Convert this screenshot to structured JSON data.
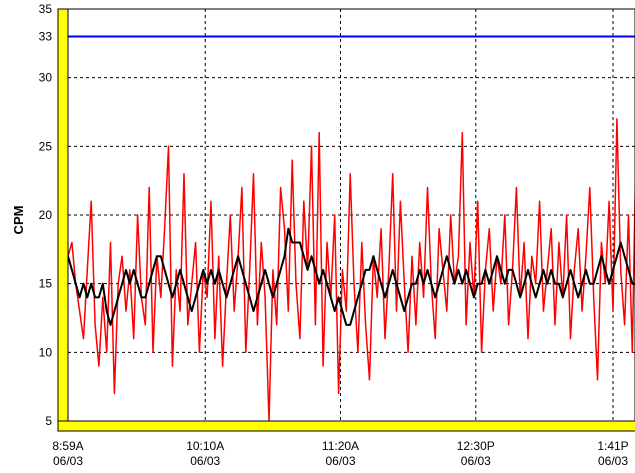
{
  "chart_data": {
    "type": "line",
    "title": "",
    "xlabel": "",
    "ylabel": "CPM",
    "ylim": [
      5,
      35
    ],
    "yticks": [
      "35",
      "33",
      "30",
      "25",
      "20",
      "15",
      "10",
      "5"
    ],
    "ytick_values": [
      35,
      33,
      30,
      25,
      20,
      15,
      10,
      5
    ],
    "xticks": [
      {
        "time": "08:59",
        "label": "8:59A",
        "date": "06/03"
      },
      {
        "time": "10:10",
        "label": "10:10A",
        "date": "06/03"
      },
      {
        "time": "11:20",
        "label": "11:20A",
        "date": "06/03"
      },
      {
        "time": "12:30",
        "label": "12:30P",
        "date": "06/03"
      },
      {
        "time": "13:41",
        "label": "1:41P",
        "date": "06/03"
      }
    ],
    "xlim": [
      "08:59",
      "13:52"
    ],
    "grid": true,
    "threshold": {
      "value": 33,
      "color": "#0000ff"
    },
    "x": [
      "08:59",
      "09:01",
      "09:03",
      "09:05",
      "09:07",
      "09:09",
      "09:11",
      "09:13",
      "09:15",
      "09:17",
      "09:19",
      "09:21",
      "09:23",
      "09:25",
      "09:27",
      "09:29",
      "09:31",
      "09:33",
      "09:35",
      "09:37",
      "09:39",
      "09:41",
      "09:43",
      "09:45",
      "09:47",
      "09:49",
      "09:51",
      "09:53",
      "09:55",
      "09:57",
      "09:59",
      "10:01",
      "10:03",
      "10:05",
      "10:07",
      "10:09",
      "10:11",
      "10:13",
      "10:15",
      "10:17",
      "10:19",
      "10:21",
      "10:23",
      "10:25",
      "10:27",
      "10:29",
      "10:31",
      "10:33",
      "10:35",
      "10:37",
      "10:39",
      "10:41",
      "10:43",
      "10:45",
      "10:47",
      "10:49",
      "10:51",
      "10:53",
      "10:55",
      "10:57",
      "10:59",
      "11:01",
      "11:03",
      "11:05",
      "11:07",
      "11:09",
      "11:11",
      "11:13",
      "11:15",
      "11:17",
      "11:19",
      "11:21",
      "11:23",
      "11:25",
      "11:27",
      "11:29",
      "11:31",
      "11:33",
      "11:35",
      "11:37",
      "11:39",
      "11:41",
      "11:43",
      "11:45",
      "11:47",
      "11:49",
      "11:51",
      "11:53",
      "11:55",
      "11:57",
      "11:59",
      "12:01",
      "12:03",
      "12:05",
      "12:07",
      "12:09",
      "12:11",
      "12:13",
      "12:15",
      "12:17",
      "12:19",
      "12:21",
      "12:23",
      "12:25",
      "12:27",
      "12:29",
      "12:31",
      "12:33",
      "12:35",
      "12:37",
      "12:39",
      "12:41",
      "12:43",
      "12:45",
      "12:47",
      "12:49",
      "12:51",
      "12:53",
      "12:55",
      "12:57",
      "12:59",
      "13:01",
      "13:03",
      "13:05",
      "13:07",
      "13:09",
      "13:11",
      "13:13",
      "13:15",
      "13:17",
      "13:19",
      "13:21",
      "13:23",
      "13:25",
      "13:27",
      "13:29",
      "13:31",
      "13:33",
      "13:35",
      "13:37",
      "13:39",
      "13:41",
      "13:43",
      "13:45",
      "13:47",
      "13:49",
      "13:51",
      "13:53"
    ],
    "series": [
      {
        "color": "#ff0000",
        "values": [
          17,
          18,
          15,
          13,
          11,
          16,
          21,
          12,
          9,
          14,
          10,
          18,
          7,
          15,
          17,
          13,
          16,
          11,
          20,
          14,
          12,
          22,
          10,
          17,
          14,
          19,
          25,
          9,
          16,
          13,
          23,
          12,
          15,
          18,
          10,
          16,
          14,
          21,
          11,
          17,
          9,
          15,
          20,
          13,
          17,
          22,
          10,
          16,
          23,
          12,
          18,
          14,
          5,
          16,
          12,
          22,
          19,
          13,
          24,
          15,
          11,
          21,
          16,
          25,
          12,
          26,
          9,
          18,
          14,
          20,
          7,
          16,
          13,
          23,
          15,
          10,
          18,
          12,
          8,
          17,
          14,
          19,
          11,
          16,
          23,
          13,
          21,
          15,
          10,
          17,
          12,
          18,
          14,
          22,
          15,
          11,
          19,
          16,
          13,
          20,
          15,
          17,
          26,
          12,
          18,
          14,
          21,
          10,
          16,
          19,
          13,
          17,
          15,
          20,
          12,
          16,
          22,
          14,
          18,
          11,
          17,
          15,
          21,
          13,
          16,
          19,
          12,
          18,
          14,
          20,
          11,
          16,
          19,
          13,
          17,
          22,
          14,
          8,
          18,
          15,
          21,
          13,
          27,
          16,
          12,
          20,
          10,
          26
        ]
      },
      {
        "color": "#000000",
        "values": [
          17,
          16,
          15,
          14,
          15,
          14,
          15,
          14,
          14,
          15,
          13,
          12,
          13,
          14,
          15,
          16,
          15,
          16,
          15,
          14,
          14,
          15,
          16,
          17,
          17,
          16,
          15,
          14,
          15,
          16,
          15,
          14,
          13,
          14,
          15,
          16,
          15,
          16,
          15,
          16,
          15,
          14,
          15,
          16,
          17,
          16,
          15,
          14,
          13,
          14,
          15,
          16,
          15,
          14,
          15,
          16,
          17,
          19,
          18,
          18,
          18,
          17,
          16,
          17,
          16,
          15,
          16,
          15,
          14,
          13,
          14,
          13,
          12,
          12,
          13,
          14,
          15,
          16,
          16,
          17,
          16,
          15,
          14,
          15,
          16,
          15,
          14,
          13,
          14,
          15,
          15,
          16,
          15,
          16,
          15,
          14,
          15,
          16,
          17,
          16,
          15,
          16,
          15,
          16,
          15,
          14,
          15,
          15,
          16,
          15,
          16,
          17,
          16,
          15,
          16,
          16,
          15,
          14,
          15,
          16,
          15,
          14,
          15,
          16,
          15,
          16,
          15,
          15,
          14,
          15,
          16,
          15,
          14,
          15,
          16,
          15,
          15,
          16,
          17,
          16,
          15,
          16,
          17,
          18,
          17,
          16,
          15,
          15
        ]
      }
    ],
    "frame_color": "#ffff00"
  }
}
